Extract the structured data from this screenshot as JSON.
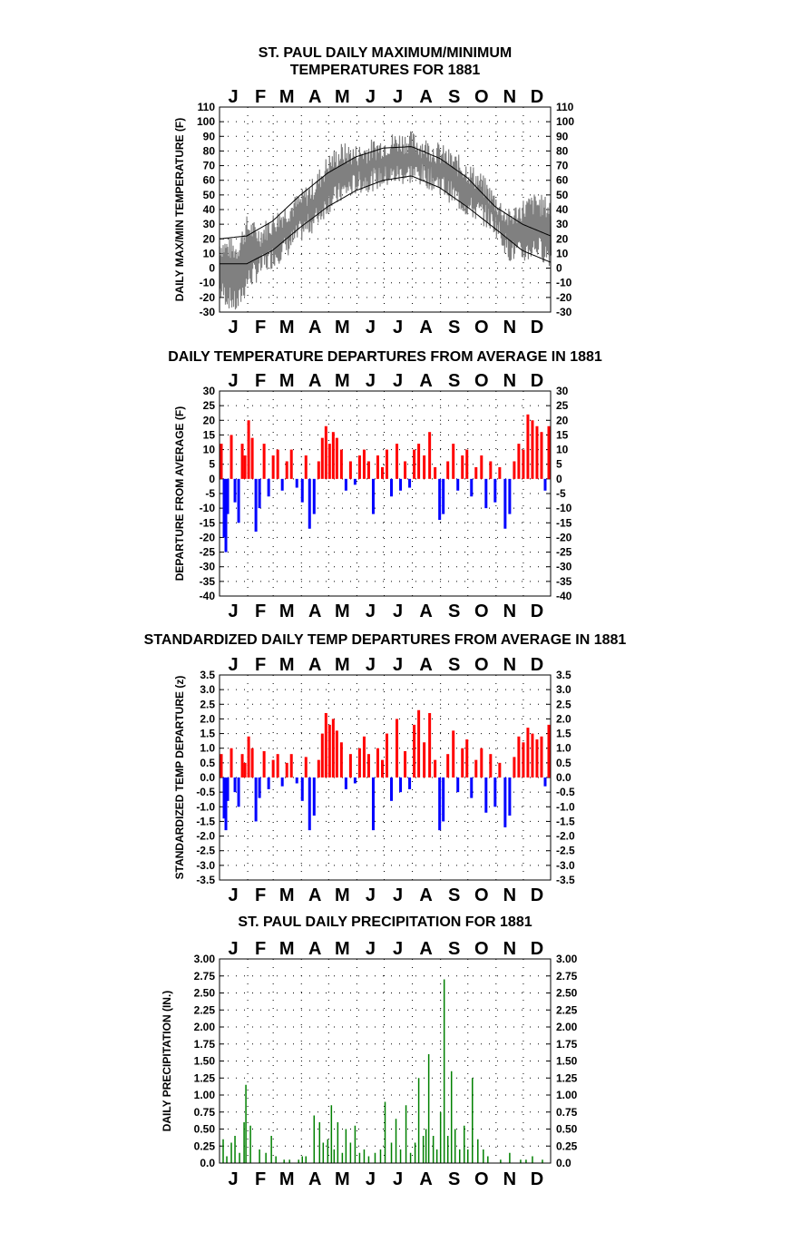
{
  "months": [
    "J",
    "F",
    "M",
    "A",
    "M",
    "J",
    "J",
    "A",
    "S",
    "O",
    "N",
    "D"
  ],
  "colors": {
    "maxmin": "#808080",
    "normal": "#000000",
    "positive": "#ff0000",
    "negative": "#0000ff",
    "precip": "#008000",
    "grid": "#000000"
  },
  "chart_data": [
    {
      "type": "line",
      "title_lines": [
        "ST. PAUL DAILY MAXIMUM/MINIMUM",
        "TEMPERATURES FOR 1881"
      ],
      "ylabel": "DAILY MAX/MIN TEMPERATURE (F)",
      "xlabel": "",
      "ylim": [
        -30,
        110
      ],
      "yticks": [
        "110",
        "100",
        "90",
        "80",
        "70",
        "60",
        "50",
        "40",
        "30",
        "20",
        "10",
        "0",
        "-10",
        "-20",
        "-30"
      ],
      "grid": true,
      "series": [
        {
          "style": "observed daily max/min band",
          "x": [
            1,
            20,
            31,
            45,
            59,
            75,
            90,
            105,
            120,
            135,
            151,
            166,
            181,
            196,
            212,
            227,
            243,
            258,
            273,
            288,
            304,
            319,
            334,
            349,
            365
          ],
          "max": [
            15,
            12,
            28,
            22,
            30,
            38,
            45,
            55,
            70,
            78,
            77,
            80,
            83,
            86,
            86,
            82,
            78,
            72,
            66,
            58,
            45,
            33,
            40,
            44,
            40
          ],
          "min": [
            -15,
            -25,
            -8,
            0,
            8,
            15,
            25,
            33,
            45,
            52,
            58,
            60,
            62,
            64,
            65,
            63,
            58,
            50,
            42,
            38,
            30,
            12,
            10,
            15,
            8
          ]
        },
        {
          "style": "normal maximum",
          "x": [
            1,
            31,
            59,
            90,
            120,
            151,
            181,
            212,
            243,
            273,
            304,
            334,
            365
          ],
          "y": [
            20,
            22,
            32,
            50,
            65,
            76,
            82,
            83,
            75,
            62,
            42,
            30,
            22
          ]
        },
        {
          "style": "normal minimum",
          "x": [
            1,
            31,
            59,
            90,
            120,
            151,
            181,
            212,
            243,
            273,
            304,
            334,
            365
          ],
          "y": [
            3,
            3,
            12,
            28,
            42,
            53,
            60,
            63,
            55,
            42,
            27,
            12,
            4
          ]
        }
      ]
    },
    {
      "type": "bar",
      "title_lines": [
        "DAILY TEMPERATURE DEPARTURES FROM AVERAGE IN 1881"
      ],
      "ylabel": "DEPARTURE FROM AVERAGE (F)",
      "xlabel": "",
      "ylim": [
        -40,
        30
      ],
      "yticks": [
        "30",
        "25",
        "20",
        "15",
        "10",
        "5",
        "0",
        "-5",
        "-10",
        "-15",
        "-20",
        "-25",
        "-30",
        "-35",
        "-40"
      ],
      "grid": true,
      "x_days": [
        3,
        6,
        8,
        10,
        14,
        18,
        22,
        26,
        29,
        33,
        37,
        41,
        45,
        50,
        55,
        60,
        65,
        70,
        75,
        80,
        86,
        92,
        96,
        100,
        105,
        110,
        114,
        118,
        122,
        126,
        130,
        135,
        140,
        145,
        150,
        155,
        160,
        165,
        170,
        175,
        180,
        185,
        190,
        196,
        200,
        205,
        210,
        215,
        220,
        226,
        232,
        238,
        243,
        247,
        252,
        258,
        263,
        268,
        273,
        278,
        283,
        289,
        294,
        299,
        304,
        309,
        315,
        320,
        325,
        330,
        335,
        340,
        345,
        350,
        355,
        359,
        363
      ],
      "values": [
        12,
        -20,
        -25,
        -12,
        15,
        -8,
        -15,
        12,
        8,
        20,
        14,
        -18,
        -10,
        12,
        -6,
        8,
        10,
        -4,
        6,
        10,
        -3,
        -8,
        8,
        -17,
        -12,
        6,
        14,
        18,
        12,
        16,
        14,
        10,
        -4,
        6,
        -2,
        8,
        10,
        6,
        -12,
        8,
        4,
        10,
        -6,
        12,
        -4,
        6,
        -3,
        10,
        12,
        8,
        16,
        4,
        -14,
        -12,
        6,
        12,
        -4,
        8,
        10,
        -6,
        4,
        8,
        -10,
        6,
        -8,
        4,
        -17,
        -12,
        6,
        12,
        10,
        22,
        20,
        18,
        16,
        -4,
        18
      ]
    },
    {
      "type": "bar",
      "title_lines": [
        "STANDARDIZED DAILY TEMP DEPARTURES FROM AVERAGE IN 1881"
      ],
      "ylabel": "STANDARDIZED TEMP DEPARTURE (z)",
      "xlabel": "",
      "ylim": [
        -3.5,
        3.5
      ],
      "yticks": [
        "3.5",
        "3.0",
        "2.5",
        "2.0",
        "1.5",
        "1.0",
        "0.5",
        "0.0",
        "-0.5",
        "-1.0",
        "-1.5",
        "-2.0",
        "-2.5",
        "-3.0",
        "-3.5"
      ],
      "grid": true,
      "x_days": [
        3,
        6,
        8,
        10,
        14,
        18,
        22,
        26,
        29,
        33,
        37,
        41,
        45,
        50,
        55,
        60,
        65,
        70,
        75,
        80,
        86,
        92,
        96,
        100,
        105,
        110,
        114,
        118,
        122,
        126,
        130,
        135,
        140,
        145,
        150,
        155,
        160,
        165,
        170,
        175,
        180,
        185,
        190,
        196,
        200,
        205,
        210,
        215,
        220,
        226,
        232,
        238,
        243,
        247,
        252,
        258,
        263,
        268,
        273,
        278,
        283,
        289,
        294,
        299,
        304,
        309,
        315,
        320,
        325,
        330,
        335,
        340,
        345,
        350,
        355,
        359,
        363
      ],
      "values": [
        0.8,
        -1.4,
        -1.8,
        -0.8,
        1.0,
        -0.5,
        -1.0,
        0.8,
        0.5,
        1.4,
        1.0,
        -1.5,
        -0.7,
        0.9,
        -0.4,
        0.6,
        0.8,
        -0.3,
        0.5,
        0.8,
        -0.2,
        -0.8,
        0.7,
        -1.8,
        -1.3,
        0.6,
        1.5,
        2.2,
        1.8,
        2.0,
        1.6,
        1.2,
        -0.4,
        0.8,
        -0.2,
        1.0,
        1.4,
        0.8,
        -1.8,
        1.0,
        0.6,
        1.5,
        -0.8,
        2.0,
        -0.5,
        0.9,
        -0.4,
        1.8,
        2.3,
        1.2,
        2.2,
        0.6,
        -1.8,
        -1.5,
        0.8,
        1.6,
        -0.5,
        1.0,
        1.3,
        -0.7,
        0.6,
        1.0,
        -1.2,
        0.8,
        -1.0,
        0.5,
        -1.7,
        -1.3,
        0.7,
        1.4,
        1.2,
        1.7,
        1.5,
        1.3,
        1.4,
        -0.3,
        1.8
      ]
    },
    {
      "type": "bar",
      "title_lines": [
        "ST. PAUL DAILY PRECIPITATION FOR 1881"
      ],
      "ylabel": "DAILY PRECIPITATION (IN.)",
      "xlabel": "",
      "ylim": [
        0,
        3.0
      ],
      "yticks": [
        "3.00",
        "2.75",
        "2.50",
        "2.25",
        "2.00",
        "1.75",
        "1.50",
        "1.25",
        "1.00",
        "0.75",
        "0.50",
        "0.25",
        "0.0"
      ],
      "grid": true,
      "x_days": [
        5,
        9,
        14,
        18,
        23,
        28,
        30,
        35,
        45,
        52,
        58,
        63,
        72,
        78,
        88,
        92,
        96,
        105,
        111,
        115,
        120,
        124,
        127,
        131,
        136,
        140,
        145,
        150,
        155,
        160,
        165,
        172,
        178,
        183,
        190,
        195,
        200,
        206,
        211,
        216,
        220,
        225,
        228,
        231,
        236,
        240,
        244,
        248,
        252,
        256,
        260,
        265,
        270,
        274,
        279,
        285,
        291,
        296,
        310,
        320,
        332,
        338,
        345,
        356
      ],
      "values": [
        0.35,
        0.1,
        0.3,
        0.4,
        0.15,
        0.6,
        1.15,
        0.55,
        0.2,
        0.15,
        0.4,
        0.1,
        0.05,
        0.05,
        0.05,
        0.1,
        0.1,
        0.7,
        0.6,
        0.3,
        0.35,
        0.85,
        0.2,
        0.6,
        0.15,
        0.5,
        0.3,
        0.55,
        0.15,
        0.2,
        0.1,
        0.15,
        0.2,
        0.9,
        0.3,
        0.65,
        0.2,
        0.85,
        0.15,
        0.3,
        1.25,
        0.4,
        0.5,
        1.6,
        0.4,
        0.2,
        0.75,
        2.7,
        0.4,
        1.35,
        0.5,
        0.2,
        0.55,
        0.2,
        1.25,
        0.35,
        0.2,
        0.1,
        0.05,
        0.15,
        0.05,
        0.05,
        0.1,
        0.05
      ]
    }
  ]
}
